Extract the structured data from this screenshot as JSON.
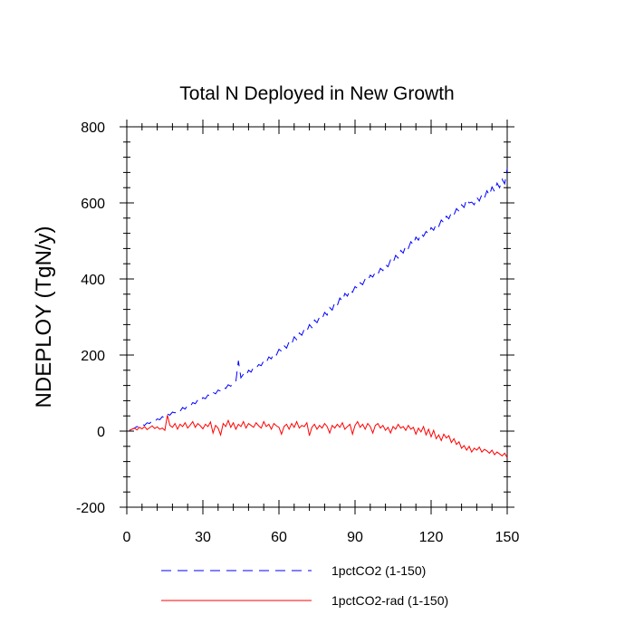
{
  "chart_data": {
    "type": "line",
    "title": "Total N Deployed in New Growth",
    "xlabel": "",
    "ylabel": "NDEPLOY  (TgN/y)",
    "xlim": [
      0,
      150
    ],
    "ylim": [
      -200,
      800
    ],
    "xticks": [
      0,
      30,
      60,
      90,
      120,
      150
    ],
    "yticks": [
      -200,
      0,
      200,
      400,
      600,
      800
    ],
    "grid": false,
    "legend_position": "bottom",
    "series": [
      {
        "name": "1pctCO2 (1-150)",
        "color": "#0000ff",
        "style": "dashed",
        "values": [
          2,
          5,
          8,
          12,
          10,
          18,
          15,
          22,
          20,
          28,
          25,
          32,
          30,
          38,
          35,
          45,
          42,
          50,
          48,
          56,
          52,
          62,
          58,
          68,
          65,
          75,
          72,
          82,
          78,
          88,
          85,
          95,
          92,
          102,
          98,
          108,
          105,
          115,
          112,
          122,
          118,
          128,
          130,
          185,
          140,
          150,
          145,
          160,
          155,
          168,
          165,
          175,
          172,
          185,
          180,
          195,
          190,
          205,
          200,
          215,
          210,
          225,
          218,
          235,
          228,
          248,
          240,
          258,
          252,
          268,
          262,
          280,
          272,
          292,
          285,
          300,
          295,
          312,
          305,
          325,
          318,
          338,
          330,
          350,
          342,
          362,
          355,
          372,
          365,
          380,
          375,
          390,
          385,
          400,
          395,
          410,
          405,
          418,
          412,
          428,
          422,
          438,
          432,
          450,
          442,
          462,
          455,
          475,
          468,
          488,
          480,
          498,
          490,
          510,
          502,
          520,
          512,
          525,
          518,
          535,
          528,
          545,
          538,
          555,
          548,
          565,
          558,
          575,
          568,
          585,
          578,
          595,
          588,
          610,
          600,
          602,
          595,
          615,
          605,
          622,
          612,
          632,
          620,
          642,
          630,
          652,
          640,
          662,
          650,
          690
        ]
      },
      {
        "name": "1pctCO2-rad (1-150)",
        "color": "#ff0000",
        "style": "solid",
        "values": [
          2,
          5,
          8,
          3,
          10,
          6,
          12,
          4,
          9,
          14,
          7,
          11,
          5,
          8,
          2,
          42,
          15,
          10,
          20,
          5,
          18,
          12,
          22,
          8,
          16,
          25,
          10,
          20,
          14,
          6,
          18,
          12,
          24,
          -5,
          15,
          8,
          -10,
          20,
          12,
          28,
          10,
          22,
          5,
          18,
          12,
          25,
          8,
          20,
          15,
          10,
          22,
          14,
          8,
          25,
          12,
          18,
          5,
          20,
          14,
          10,
          -8,
          12,
          18,
          5,
          20,
          10,
          25,
          8,
          15,
          12,
          22,
          -12,
          10,
          18,
          5,
          15,
          8,
          20,
          12,
          -5,
          15,
          8,
          18,
          10,
          22,
          5,
          12,
          18,
          -8,
          15,
          25,
          10,
          18,
          5,
          20,
          12,
          -5,
          15,
          20,
          8,
          15,
          2,
          10,
          -5,
          12,
          5,
          18,
          8,
          12,
          2,
          15,
          5,
          10,
          -8,
          8,
          -2,
          12,
          -10,
          5,
          -15,
          2,
          -20,
          -10,
          -25,
          -8,
          -18,
          -12,
          -30,
          -20,
          -35,
          -28,
          -45,
          -38,
          -50,
          -40,
          -55,
          -45,
          -50,
          -42,
          -55,
          -48,
          -52,
          -58,
          -50,
          -62,
          -55,
          -60,
          -65,
          -58,
          -70
        ]
      }
    ]
  }
}
